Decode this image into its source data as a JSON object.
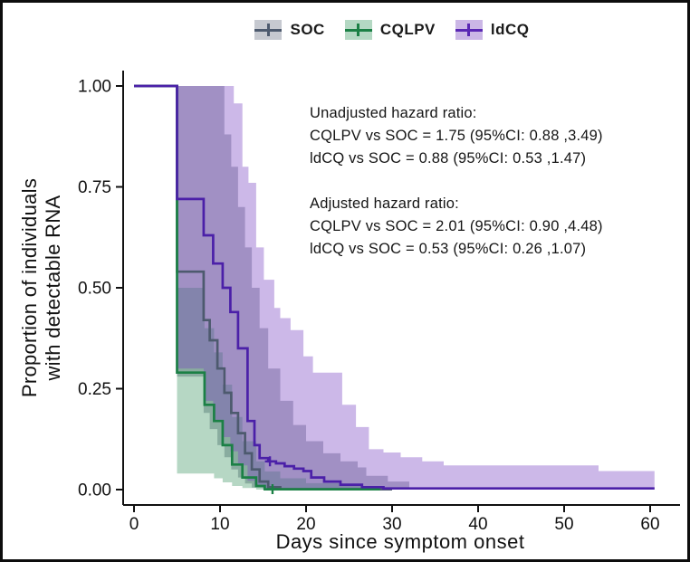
{
  "figure": {
    "background": "#ffffff",
    "border_color": "#0d0d0d"
  },
  "legend": {
    "items": [
      {
        "label": "SOC",
        "line_color": "#4d5a6e",
        "fill_color": "#c6c9d0"
      },
      {
        "label": "CQLPV",
        "line_color": "#1b8045",
        "fill_color": "#b4d8c3"
      },
      {
        "label": "ldCQ",
        "line_color": "#5a28b4",
        "fill_color": "#cbb7e6"
      }
    ]
  },
  "annotation": {
    "lines": [
      "Unadjusted hazard ratio:",
      "CQLPV vs SOC = 1.75 (95%CI: 0.88 ,3.49)",
      "ldCQ vs SOC = 0.88 (95%CI: 0.53 ,1.47)",
      "",
      "Adjusted hazard ratio:",
      "CQLPV vs SOC = 2.01 (95%CI: 0.90 ,4.48)",
      "ldCQ vs SOC = 0.53 (95%CI: 0.26 ,1.07)"
    ]
  },
  "chart_data": {
    "type": "line",
    "subtype": "kaplan-meier-step",
    "title": "",
    "xlabel": "Days since symptom onset",
    "ylabel_lines": [
      "Proportion of individuals",
      "with detectable RNA"
    ],
    "xlim": [
      0,
      63
    ],
    "ylim": [
      0,
      1
    ],
    "grid": false,
    "legend_position": "top",
    "x_ticks": [
      {
        "value": 0,
        "label": "0"
      },
      {
        "value": 10,
        "label": "10"
      },
      {
        "value": 20,
        "label": "20"
      },
      {
        "value": 30,
        "label": "30"
      },
      {
        "value": 40,
        "label": "40"
      },
      {
        "value": 50,
        "label": "50"
      },
      {
        "value": 60,
        "label": "60"
      }
    ],
    "y_ticks": [
      {
        "value": 0.0,
        "label": "0.00"
      },
      {
        "value": 0.25,
        "label": "0.25"
      },
      {
        "value": 0.5,
        "label": "0.50"
      },
      {
        "value": 0.75,
        "label": "0.75"
      },
      {
        "value": 1.0,
        "label": "1.00"
      }
    ],
    "series": [
      {
        "name": "SOC",
        "color": "#4d5a6e",
        "band_color": "#5a6377",
        "band_opacity": 0.42,
        "steps": [
          [
            0,
            1
          ],
          [
            5,
            1
          ],
          [
            5,
            0.54
          ],
          [
            8.1,
            0.54
          ],
          [
            8.1,
            0.42
          ],
          [
            8.8,
            0.42
          ],
          [
            8.8,
            0.37
          ],
          [
            9.7,
            0.37
          ],
          [
            9.7,
            0.3
          ],
          [
            10.5,
            0.3
          ],
          [
            10.5,
            0.24
          ],
          [
            11.3,
            0.24
          ],
          [
            11.3,
            0.19
          ],
          [
            12.1,
            0.19
          ],
          [
            12.1,
            0.14
          ],
          [
            12.9,
            0.14
          ],
          [
            12.9,
            0.09
          ],
          [
            13.7,
            0.09
          ],
          [
            13.7,
            0.05
          ],
          [
            14.6,
            0.05
          ],
          [
            14.6,
            0.02
          ],
          [
            15.6,
            0.02
          ],
          [
            15.6,
            0.006
          ],
          [
            17,
            0.006
          ],
          [
            17,
            0.001
          ],
          [
            30,
            0.001
          ]
        ],
        "ci_upper": [
          [
            5,
            1.0
          ],
          [
            10.5,
            1.0
          ],
          [
            10.5,
            0.88
          ],
          [
            11.3,
            0.88
          ],
          [
            11.3,
            0.8
          ],
          [
            12.1,
            0.8
          ],
          [
            12.1,
            0.7
          ],
          [
            12.9,
            0.7
          ],
          [
            12.9,
            0.6
          ],
          [
            13.7,
            0.6
          ],
          [
            13.7,
            0.5
          ],
          [
            14.6,
            0.5
          ],
          [
            14.6,
            0.4
          ],
          [
            15.6,
            0.4
          ],
          [
            15.6,
            0.3
          ],
          [
            17,
            0.3
          ],
          [
            17,
            0.22
          ],
          [
            18.5,
            0.22
          ],
          [
            18.5,
            0.16
          ],
          [
            20,
            0.16
          ],
          [
            20,
            0.12
          ],
          [
            22,
            0.12
          ],
          [
            22,
            0.09
          ],
          [
            24,
            0.09
          ],
          [
            24,
            0.07
          ],
          [
            26,
            0.07
          ],
          [
            26,
            0.055
          ],
          [
            27,
            0.055
          ],
          [
            27,
            0.034
          ],
          [
            29.5,
            0.034
          ],
          [
            29.5,
            0.02
          ],
          [
            32,
            0.02
          ]
        ],
        "ci_lower": [
          [
            5,
            0.28
          ],
          [
            8.1,
            0.28
          ],
          [
            8.1,
            0.19
          ],
          [
            8.8,
            0.19
          ],
          [
            8.8,
            0.15
          ],
          [
            9.7,
            0.15
          ],
          [
            9.7,
            0.11
          ],
          [
            10.5,
            0.11
          ],
          [
            10.5,
            0.08
          ],
          [
            11.3,
            0.08
          ],
          [
            11.3,
            0.05
          ],
          [
            12.1,
            0.05
          ],
          [
            12.1,
            0.03
          ],
          [
            12.9,
            0.03
          ],
          [
            12.9,
            0.015
          ],
          [
            13.7,
            0.015
          ],
          [
            13.7,
            0.005
          ],
          [
            15,
            0.005
          ],
          [
            15,
            0
          ],
          [
            32,
            0
          ]
        ],
        "censor_marks": []
      },
      {
        "name": "CQLPV",
        "color": "#1b8045",
        "band_color": "#2e8b57",
        "band_opacity": 0.35,
        "steps": [
          [
            0,
            1
          ],
          [
            5,
            1
          ],
          [
            5,
            0.29
          ],
          [
            8.2,
            0.29
          ],
          [
            8.2,
            0.21
          ],
          [
            9.3,
            0.21
          ],
          [
            9.3,
            0.17
          ],
          [
            10.3,
            0.17
          ],
          [
            10.3,
            0.11
          ],
          [
            11.4,
            0.11
          ],
          [
            11.4,
            0.062
          ],
          [
            12.6,
            0.062
          ],
          [
            12.6,
            0.03
          ],
          [
            14.2,
            0.03
          ],
          [
            14.2,
            0.009
          ],
          [
            15.2,
            0.009
          ],
          [
            15.2,
            0.001
          ],
          [
            28.6,
            0.001
          ]
        ],
        "ci_upper": [
          [
            5,
            0.5
          ],
          [
            8.2,
            0.5
          ],
          [
            8.2,
            0.4
          ],
          [
            9.3,
            0.4
          ],
          [
            9.3,
            0.34
          ],
          [
            10.3,
            0.34
          ],
          [
            10.3,
            0.26
          ],
          [
            11.4,
            0.26
          ],
          [
            11.4,
            0.18
          ],
          [
            12.6,
            0.18
          ],
          [
            12.6,
            0.12
          ],
          [
            14.2,
            0.12
          ],
          [
            14.2,
            0.07
          ],
          [
            15.2,
            0.07
          ],
          [
            15.2,
            0.045
          ],
          [
            17,
            0.045
          ],
          [
            17,
            0.028
          ],
          [
            20,
            0.028
          ],
          [
            20,
            0.016
          ],
          [
            24,
            0.016
          ],
          [
            24,
            0.009
          ],
          [
            28.6,
            0.009
          ]
        ],
        "ci_lower": [
          [
            5,
            0.04
          ],
          [
            9.3,
            0.04
          ],
          [
            9.3,
            0.028
          ],
          [
            10.3,
            0.028
          ],
          [
            10.3,
            0.018
          ],
          [
            11.4,
            0.018
          ],
          [
            11.4,
            0.009
          ],
          [
            12.6,
            0.009
          ],
          [
            12.6,
            0.004
          ],
          [
            14.2,
            0.004
          ],
          [
            14.2,
            0
          ],
          [
            28.6,
            0
          ]
        ],
        "censor_marks": [
          [
            16.1,
            0.001
          ]
        ]
      },
      {
        "name": "ldCQ",
        "color": "#4b20a8",
        "band_color": "#7a45c2",
        "band_opacity": 0.38,
        "steps": [
          [
            0,
            1
          ],
          [
            5,
            1
          ],
          [
            5,
            0.72
          ],
          [
            8.1,
            0.72
          ],
          [
            8.1,
            0.63
          ],
          [
            9.2,
            0.63
          ],
          [
            9.2,
            0.56
          ],
          [
            10.3,
            0.56
          ],
          [
            10.3,
            0.5
          ],
          [
            11.2,
            0.5
          ],
          [
            11.2,
            0.44
          ],
          [
            12.1,
            0.44
          ],
          [
            12.1,
            0.35
          ],
          [
            13.2,
            0.35
          ],
          [
            13.2,
            0.17
          ],
          [
            14,
            0.17
          ],
          [
            14,
            0.11
          ],
          [
            14.6,
            0.11
          ],
          [
            14.6,
            0.078
          ],
          [
            15.6,
            0.078
          ],
          [
            15.6,
            0.07
          ],
          [
            16.5,
            0.07
          ],
          [
            16.5,
            0.065
          ],
          [
            17.5,
            0.065
          ],
          [
            17.5,
            0.058
          ],
          [
            18.6,
            0.058
          ],
          [
            18.6,
            0.052
          ],
          [
            19.7,
            0.052
          ],
          [
            19.7,
            0.046
          ],
          [
            20.6,
            0.046
          ],
          [
            20.6,
            0.03
          ],
          [
            22.1,
            0.03
          ],
          [
            22.1,
            0.02
          ],
          [
            24,
            0.02
          ],
          [
            24,
            0.012
          ],
          [
            26.5,
            0.012
          ],
          [
            26.5,
            0.006
          ],
          [
            29,
            0.006
          ],
          [
            29,
            0.003
          ],
          [
            60.5,
            0.003
          ]
        ],
        "ci_upper": [
          [
            5,
            1.0
          ],
          [
            11.6,
            1.0
          ],
          [
            11.6,
            0.957
          ],
          [
            12.6,
            0.957
          ],
          [
            12.6,
            0.8
          ],
          [
            13.3,
            0.8
          ],
          [
            13.3,
            0.76
          ],
          [
            14.2,
            0.76
          ],
          [
            14.2,
            0.6
          ],
          [
            15.1,
            0.6
          ],
          [
            15.1,
            0.52
          ],
          [
            16.3,
            0.52
          ],
          [
            16.3,
            0.45
          ],
          [
            17.0,
            0.45
          ],
          [
            17.0,
            0.425
          ],
          [
            18.2,
            0.425
          ],
          [
            18.2,
            0.395
          ],
          [
            19.7,
            0.395
          ],
          [
            19.7,
            0.33
          ],
          [
            20.8,
            0.33
          ],
          [
            20.8,
            0.29
          ],
          [
            24.2,
            0.29
          ],
          [
            24.2,
            0.21
          ],
          [
            25.8,
            0.21
          ],
          [
            25.8,
            0.155
          ],
          [
            27.3,
            0.155
          ],
          [
            27.3,
            0.1
          ],
          [
            29,
            0.1
          ],
          [
            29,
            0.092
          ],
          [
            31,
            0.092
          ],
          [
            31,
            0.08
          ],
          [
            33.5,
            0.08
          ],
          [
            33.5,
            0.07
          ],
          [
            36,
            0.07
          ],
          [
            36,
            0.06
          ],
          [
            40,
            0.06
          ],
          [
            54,
            0.06
          ],
          [
            54,
            0.046
          ],
          [
            60.5,
            0.046
          ]
        ],
        "ci_lower": [
          [
            5,
            0.3
          ],
          [
            8.1,
            0.3
          ],
          [
            8.1,
            0.22
          ],
          [
            9.2,
            0.22
          ],
          [
            9.2,
            0.17
          ],
          [
            10.3,
            0.17
          ],
          [
            10.3,
            0.13
          ],
          [
            11.2,
            0.13
          ],
          [
            11.2,
            0.095
          ],
          [
            12.1,
            0.095
          ],
          [
            12.1,
            0.06
          ],
          [
            13.2,
            0.06
          ],
          [
            13.2,
            0.022
          ],
          [
            14,
            0.022
          ],
          [
            14,
            0.012
          ],
          [
            15,
            0.012
          ],
          [
            15,
            0.004
          ],
          [
            17,
            0.004
          ],
          [
            17,
            0
          ],
          [
            60.5,
            0
          ]
        ],
        "censor_marks": [
          [
            15.8,
            0.07
          ]
        ]
      }
    ]
  }
}
